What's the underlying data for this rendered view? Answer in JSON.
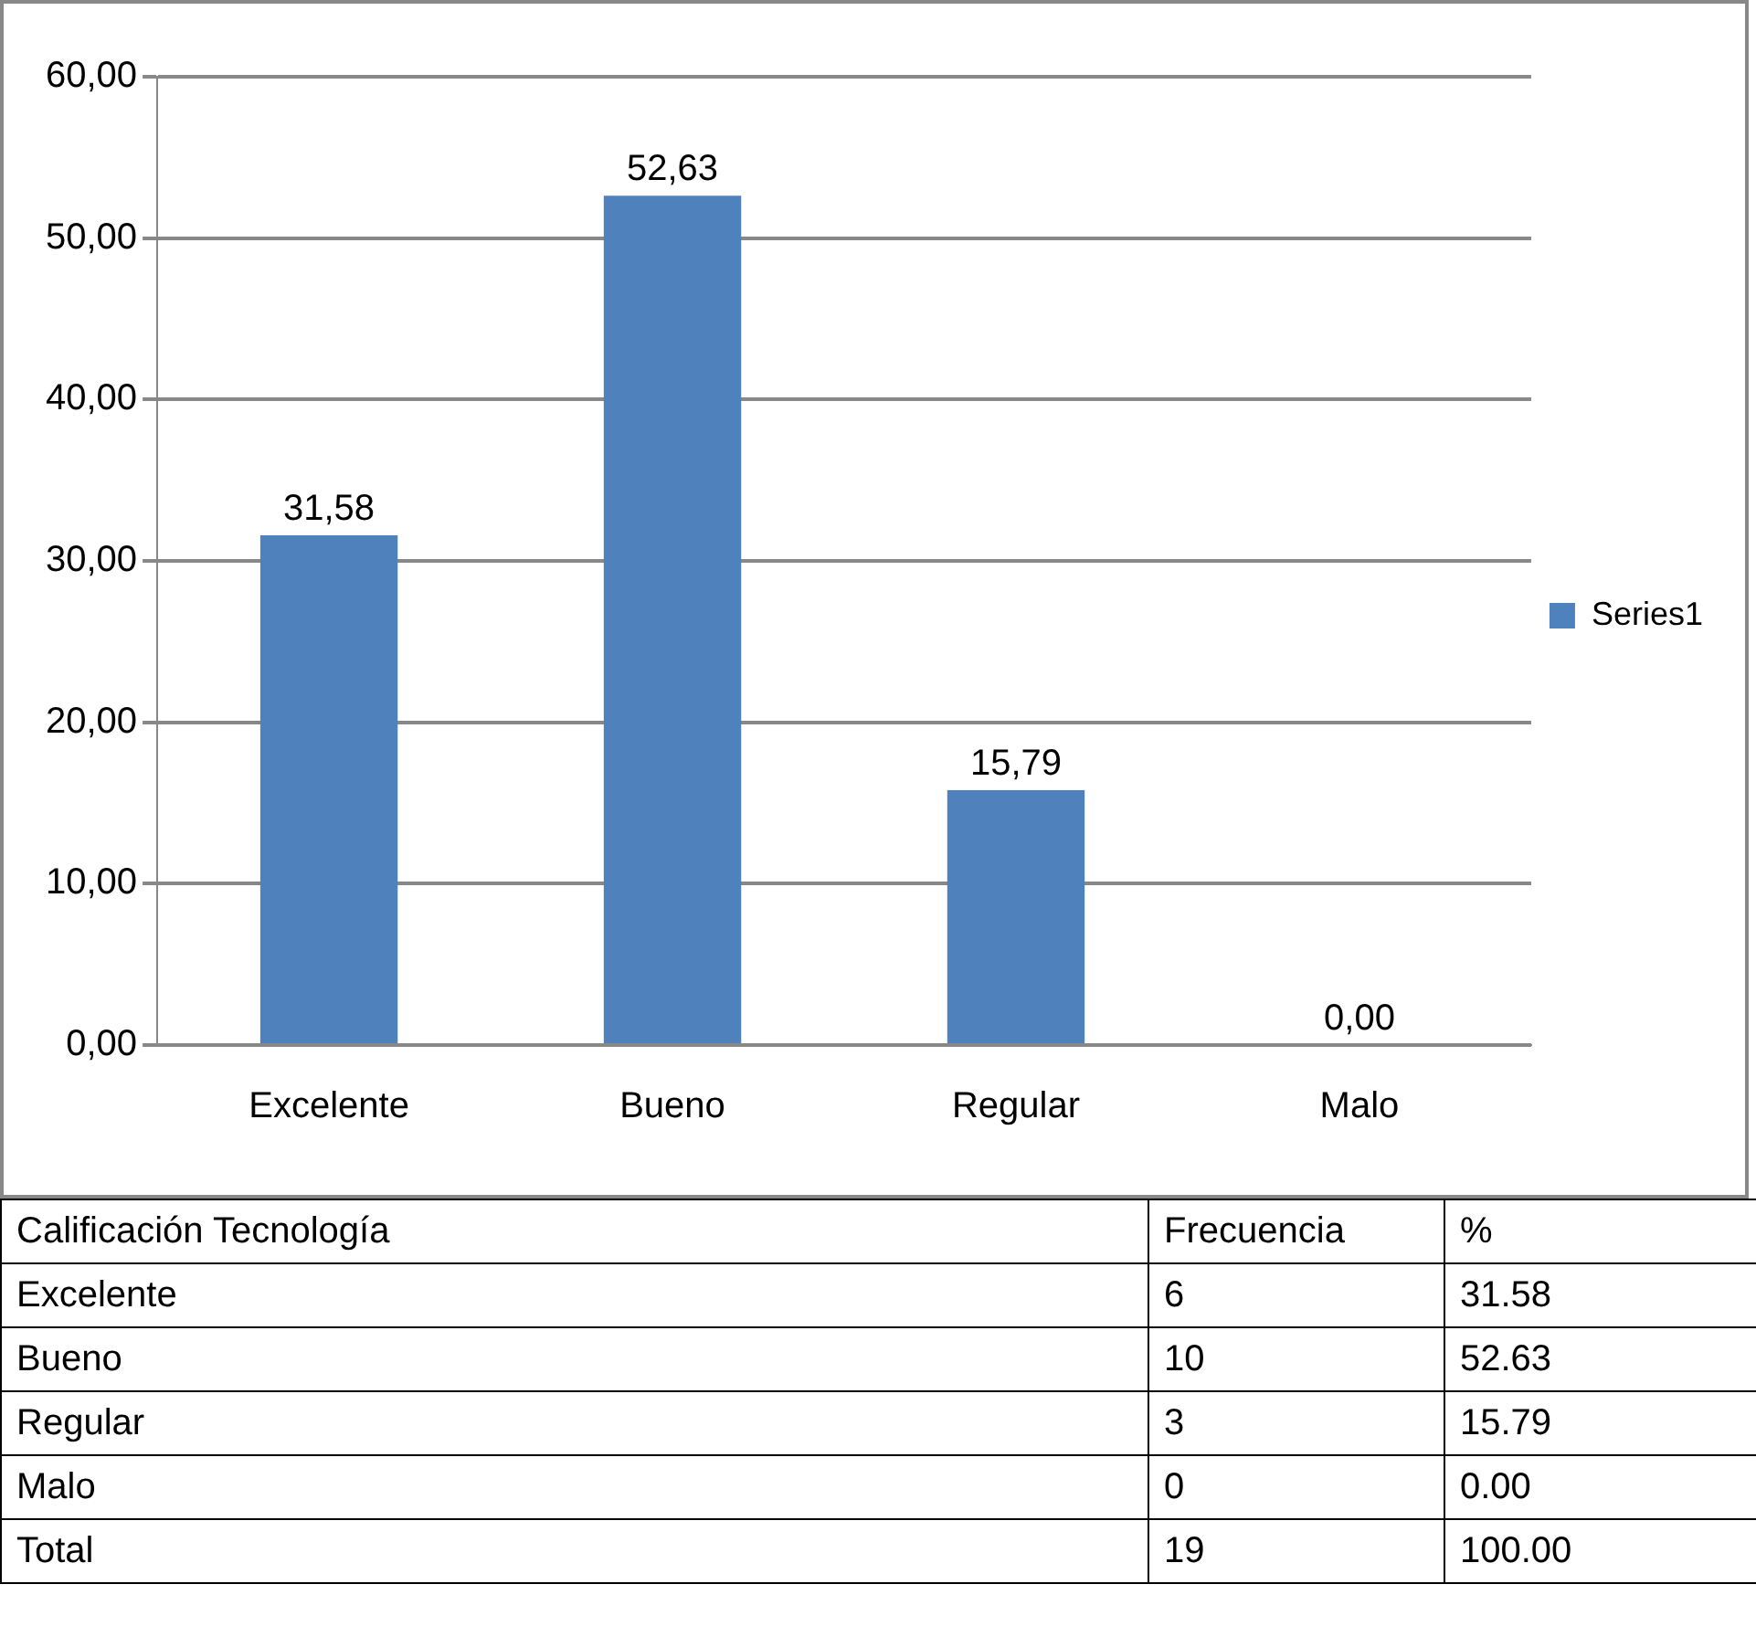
{
  "chart_data": [
    {
      "type": "bar",
      "categories": [
        "Excelente",
        "Bueno",
        "Regular",
        "Malo"
      ],
      "series": [
        {
          "name": "Series1",
          "color": "#4f81bd",
          "values": [
            31.58,
            52.63,
            15.79,
            0
          ],
          "value_labels": [
            "31,58",
            "52,63",
            "15,79",
            "0,00"
          ]
        }
      ],
      "ylim": [
        0,
        60
      ],
      "yticks": [
        {
          "value": 0,
          "label": "0,00"
        },
        {
          "value": 10,
          "label": "10,00"
        },
        {
          "value": 20,
          "label": "20,00"
        },
        {
          "value": 30,
          "label": "30,00"
        },
        {
          "value": 40,
          "label": "40,00"
        },
        {
          "value": 50,
          "label": "50,00"
        },
        {
          "value": 60,
          "label": "60,00"
        }
      ],
      "grid": "y",
      "legend": "right"
    },
    {
      "type": "other",
      "annotations": [
        "Calificación Tecnología",
        "Frecuencia",
        "%",
        "Excelente",
        "6",
        "31.58",
        "Bueno",
        "10",
        "52.63",
        "Regular",
        "3",
        "15.79",
        "Malo",
        "0",
        "0.00",
        "Total",
        "19",
        "100.00"
      ]
    }
  ]
}
